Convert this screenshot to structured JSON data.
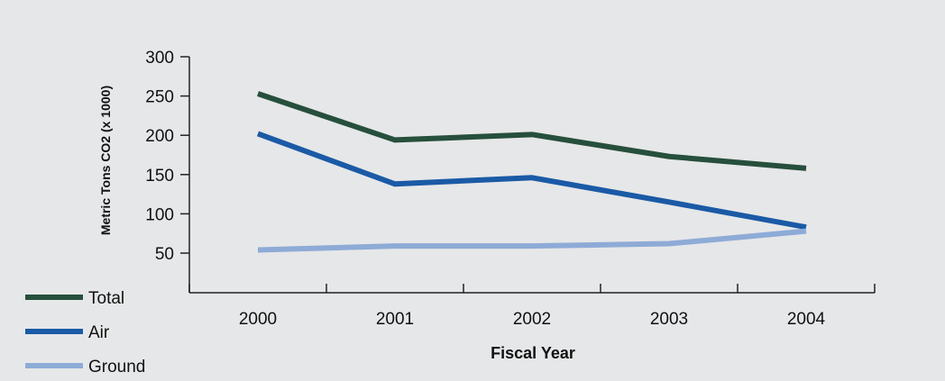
{
  "chart_data": {
    "type": "line",
    "title": "",
    "xlabel": "Fiscal Year",
    "ylabel": "Metric Tons CO2 (x 1000)",
    "categories": [
      "2000",
      "2001",
      "2002",
      "2003",
      "2004"
    ],
    "ylim": [
      0,
      300
    ],
    "yticks": [
      50,
      100,
      150,
      200,
      250,
      300
    ],
    "grid": false,
    "legend_position": "bottom-left",
    "series": [
      {
        "name": "Total",
        "color": "#264f3c",
        "values": [
          253,
          194,
          201,
          173,
          158
        ]
      },
      {
        "name": "Air",
        "color": "#1a5aa6",
        "values": [
          202,
          138,
          146,
          115,
          83
        ]
      },
      {
        "name": "Ground",
        "color": "#8eabd7",
        "values": [
          54,
          59,
          59,
          62,
          78
        ]
      }
    ]
  }
}
